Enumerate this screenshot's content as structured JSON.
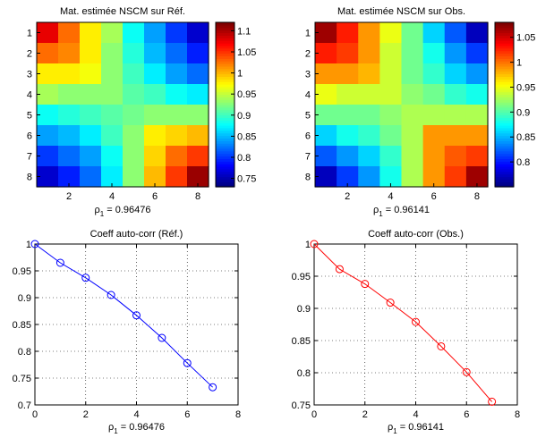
{
  "figure": {
    "panels": [
      {
        "id": "hm-ref",
        "type": "heatmap",
        "title": "Mat. estimée NSCM sur Réf.",
        "xlabel_main": "ρ",
        "xlabel_sub": "1",
        "xlabel_rest": " = 0.96476"
      },
      {
        "id": "hm-obs",
        "type": "heatmap",
        "title": "Mat. estimée NSCM sur Obs.",
        "xlabel_main": "ρ",
        "xlabel_sub": "1",
        "xlabel_rest": " = 0.96141"
      },
      {
        "id": "line-ref",
        "type": "line",
        "title": "Coeff auto-corr (Réf.)",
        "xlabel_main": "ρ",
        "xlabel_sub": "1",
        "xlabel_rest": " = 0.96476"
      },
      {
        "id": "line-obs",
        "type": "line",
        "title": "Coeff auto-corr (Obs.)",
        "xlabel_main": "ρ",
        "xlabel_sub": "1",
        "xlabel_rest": " = 0.96141"
      }
    ]
  },
  "chart_data": [
    {
      "type": "heatmap",
      "title": "Mat. estimée NSCM sur Réf.",
      "xlabel": "ρ1 = 0.96476",
      "rows": [
        1,
        2,
        3,
        4,
        5,
        6,
        7,
        8
      ],
      "x_ticks": [
        2,
        4,
        6,
        8
      ],
      "y_ticks": [
        1,
        2,
        3,
        4,
        5,
        6,
        7,
        8
      ],
      "colorbar": {
        "ticks": [
          0.75,
          0.8,
          0.85,
          0.9,
          0.95,
          1,
          1.05,
          1.1
        ],
        "tick_labels": [
          "0.75",
          "0.8",
          "0.85",
          "0.9",
          "0.95",
          "1",
          "1.05",
          "1.1"
        ],
        "range": [
          0.73,
          1.12
        ]
      },
      "values": [
        [
          1.08,
          1.03,
          0.98,
          0.94,
          0.88,
          0.84,
          0.8,
          0.76
        ],
        [
          1.03,
          1.02,
          0.98,
          0.93,
          0.89,
          0.85,
          0.82,
          0.79
        ],
        [
          0.98,
          0.98,
          0.97,
          0.93,
          0.9,
          0.87,
          0.84,
          0.82
        ],
        [
          0.94,
          0.93,
          0.93,
          0.93,
          0.91,
          0.9,
          0.88,
          0.87
        ],
        [
          0.88,
          0.89,
          0.9,
          0.91,
          0.92,
          0.93,
          0.93,
          0.93
        ],
        [
          0.84,
          0.85,
          0.87,
          0.9,
          0.93,
          0.98,
          0.99,
          1.0
        ],
        [
          0.8,
          0.82,
          0.84,
          0.88,
          0.93,
          0.99,
          1.03,
          1.05
        ],
        [
          0.76,
          0.79,
          0.82,
          0.87,
          0.93,
          1.0,
          1.05,
          1.11
        ]
      ]
    },
    {
      "type": "heatmap",
      "title": "Mat. estimée NSCM sur Obs.",
      "xlabel": "ρ1 = 0.96141",
      "rows": [
        1,
        2,
        3,
        4,
        5,
        6,
        7,
        8
      ],
      "x_ticks": [
        2,
        4,
        6,
        8
      ],
      "y_ticks": [
        1,
        2,
        3,
        4,
        5,
        6,
        7,
        8
      ],
      "colorbar": {
        "ticks": [
          0.8,
          0.85,
          0.9,
          0.95,
          1,
          1.05
        ],
        "tick_labels": [
          "0.8",
          "0.85",
          "0.9",
          "0.95",
          "1",
          "1.05"
        ],
        "range": [
          0.75,
          1.08
        ]
      },
      "values": [
        [
          1.07,
          1.03,
          0.99,
          0.95,
          0.91,
          0.86,
          0.82,
          0.77
        ],
        [
          1.03,
          1.02,
          0.99,
          0.94,
          0.91,
          0.88,
          0.84,
          0.81
        ],
        [
          0.99,
          0.99,
          0.98,
          0.94,
          0.91,
          0.89,
          0.86,
          0.84
        ],
        [
          0.95,
          0.94,
          0.94,
          0.94,
          0.92,
          0.91,
          0.89,
          0.88
        ],
        [
          0.91,
          0.91,
          0.91,
          0.92,
          0.93,
          0.93,
          0.93,
          0.93
        ],
        [
          0.86,
          0.88,
          0.89,
          0.91,
          0.93,
          0.99,
          0.99,
          0.99
        ],
        [
          0.82,
          0.84,
          0.86,
          0.89,
          0.93,
          0.99,
          1.01,
          1.02
        ],
        [
          0.77,
          0.81,
          0.84,
          0.88,
          0.93,
          0.99,
          1.02,
          1.07
        ]
      ]
    },
    {
      "type": "line",
      "title": "Coeff auto-corr (Réf.)",
      "xlabel": "ρ1 = 0.96476",
      "xlim": [
        0,
        8
      ],
      "ylim": [
        0.7,
        1.0
      ],
      "x_ticks": [
        0,
        2,
        4,
        6,
        8
      ],
      "y_ticks": [
        0.7,
        0.75,
        0.8,
        0.85,
        0.9,
        0.95,
        1
      ],
      "y_tick_labels": [
        "0.7",
        "0.75",
        "0.8",
        "0.85",
        "0.9",
        "0.95",
        "1"
      ],
      "grid": "dotted",
      "color": "#0000ff",
      "x": [
        0,
        1,
        2,
        3,
        4,
        5,
        6,
        7
      ],
      "y": [
        1.0,
        0.965,
        0.937,
        0.905,
        0.867,
        0.825,
        0.778,
        0.733
      ]
    },
    {
      "type": "line",
      "title": "Coeff auto-corr (Obs.)",
      "xlabel": "ρ1 = 0.96141",
      "xlim": [
        0,
        8
      ],
      "ylim": [
        0.75,
        1.0
      ],
      "x_ticks": [
        0,
        2,
        4,
        6,
        8
      ],
      "y_ticks": [
        0.75,
        0.8,
        0.85,
        0.9,
        0.95,
        1
      ],
      "y_tick_labels": [
        "0.75",
        "0.8",
        "0.85",
        "0.9",
        "0.95",
        "1"
      ],
      "grid": "dotted",
      "color": "#ff0000",
      "x": [
        0,
        1,
        2,
        3,
        4,
        5,
        6,
        7
      ],
      "y": [
        1.0,
        0.961,
        0.938,
        0.909,
        0.879,
        0.841,
        0.801,
        0.755
      ]
    }
  ]
}
